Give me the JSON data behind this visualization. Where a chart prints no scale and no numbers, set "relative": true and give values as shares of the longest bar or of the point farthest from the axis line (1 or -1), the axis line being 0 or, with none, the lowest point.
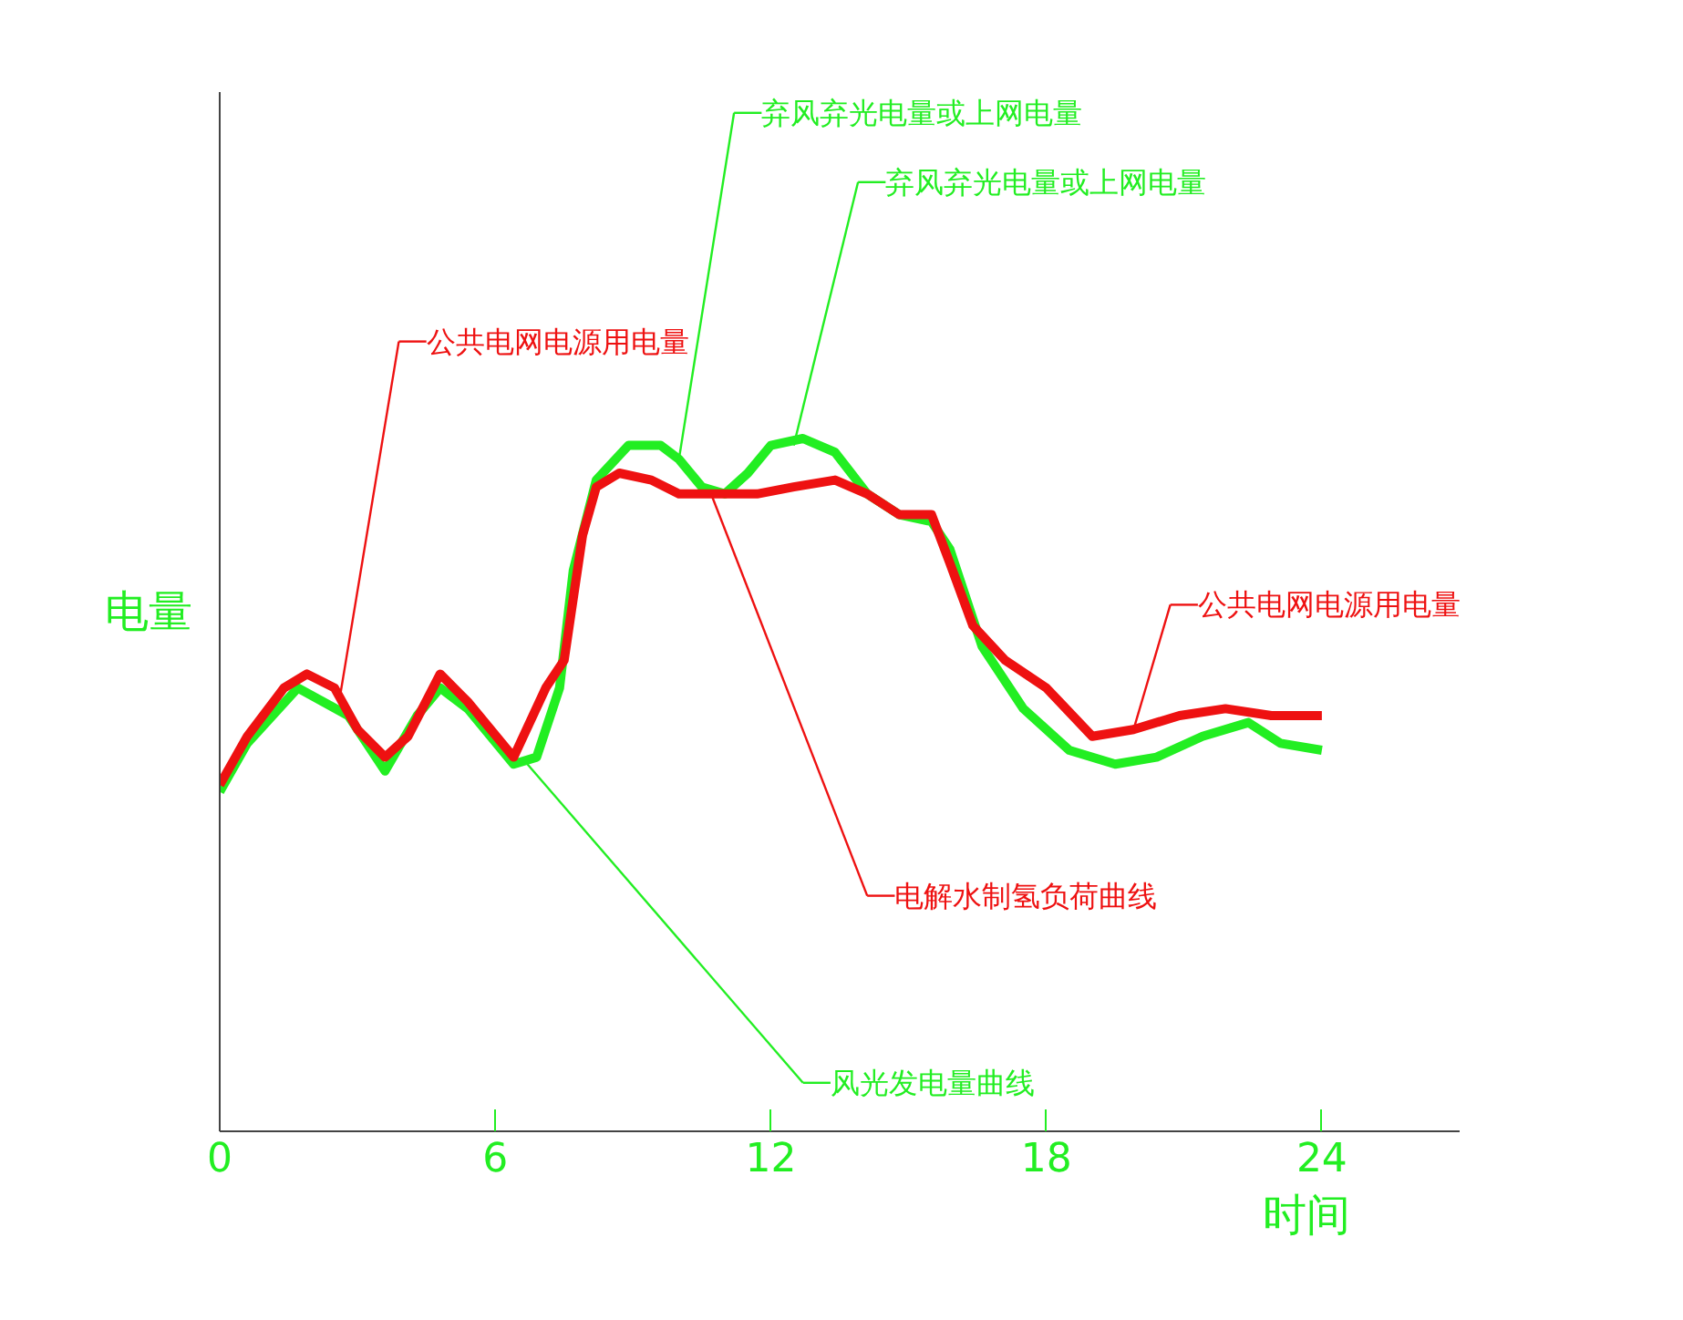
{
  "chart_data": {
    "type": "line",
    "relative": true,
    "xlabel": "时间",
    "ylabel": "电量",
    "xlim": [
      0,
      27
    ],
    "xticks": [
      0,
      6,
      12,
      18,
      24
    ],
    "grid": false,
    "marker": "none",
    "line_style": "solid",
    "series": [
      {
        "color": "#22ee22",
        "x": [
          0,
          0.6,
          1.7,
          2.8,
          3.6,
          4.3,
          4.8,
          5.4,
          6.4,
          6.9,
          7.4,
          7.7,
          8.2,
          8.9,
          9.6,
          10.0,
          10.5,
          11.0,
          11.5,
          12.0,
          12.7,
          13.4,
          14.1,
          14.8,
          15.5,
          15.9,
          16.6,
          17.5,
          18.5,
          19.5,
          20.4,
          21.4,
          22.4,
          23.1,
          24
        ],
        "values": [
          0.49,
          0.56,
          0.64,
          0.6,
          0.52,
          0.6,
          0.64,
          0.61,
          0.53,
          0.54,
          0.64,
          0.81,
          0.94,
          0.99,
          0.99,
          0.97,
          0.93,
          0.92,
          0.95,
          0.99,
          1.0,
          0.98,
          0.92,
          0.89,
          0.88,
          0.84,
          0.7,
          0.61,
          0.55,
          0.53,
          0.54,
          0.57,
          0.59,
          0.56,
          0.55
        ]
      },
      {
        "color": "#ee1111",
        "x": [
          0,
          0.6,
          1.4,
          1.9,
          2.5,
          3.0,
          3.6,
          4.1,
          4.8,
          5.4,
          6.4,
          7.1,
          7.5,
          7.9,
          8.2,
          8.7,
          9.4,
          10.0,
          10.5,
          11.0,
          11.7,
          12.5,
          13.4,
          14.1,
          14.8,
          15.5,
          15.9,
          16.4,
          17.1,
          18.0,
          19.0,
          19.9,
          20.9,
          21.9,
          22.9,
          24
        ],
        "values": [
          0.5,
          0.57,
          0.64,
          0.66,
          0.64,
          0.58,
          0.54,
          0.57,
          0.66,
          0.62,
          0.54,
          0.64,
          0.68,
          0.86,
          0.93,
          0.95,
          0.94,
          0.92,
          0.92,
          0.92,
          0.92,
          0.93,
          0.94,
          0.92,
          0.89,
          0.89,
          0.82,
          0.73,
          0.68,
          0.64,
          0.57,
          0.58,
          0.6,
          0.61,
          0.6,
          0.6
        ]
      }
    ],
    "annotations": [
      {
        "text": "弃风弃光电量或上网电量",
        "x": 10.0,
        "y": 0.97
      },
      {
        "text": "弃风弃光电量或上网电量",
        "x": 12.5,
        "y": 0.99
      },
      {
        "text": "公共电网电源用电量",
        "x": 2.6,
        "y": 0.62
      },
      {
        "text": "公共电网电源用电量",
        "x": 19.9,
        "y": 0.58
      },
      {
        "text": "电解水制氢负荷曲线",
        "x": 10.7,
        "y": 0.92
      },
      {
        "text": "风光发电量曲线",
        "x": 6.7,
        "y": 0.53
      }
    ]
  }
}
